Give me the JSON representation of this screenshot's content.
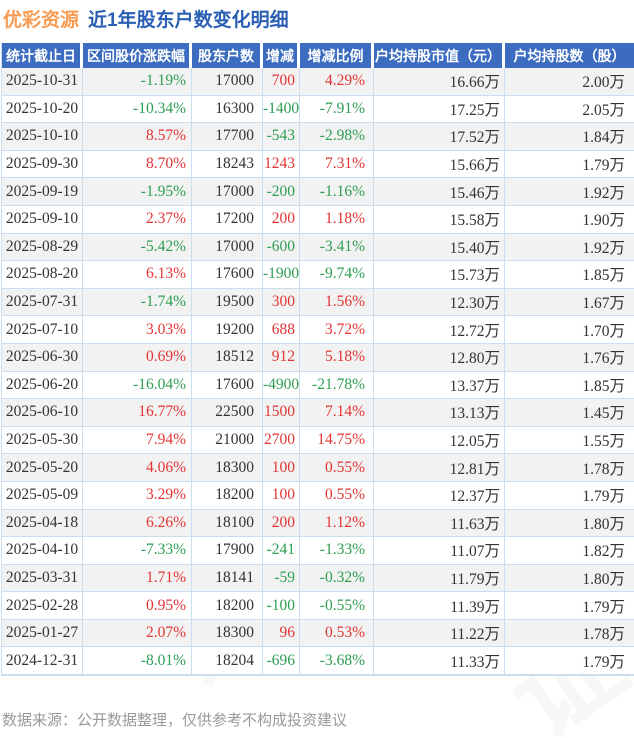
{
  "title": {
    "stock": "优彩资源",
    "suffix": "近1年股东户数变化明细"
  },
  "watermark": {
    "text": "证券之星"
  },
  "footer": {
    "note": "数据来源：公开数据整理，仅供参考不构成投资建议"
  },
  "colors": {
    "header_bg": "#3C6CBF",
    "title_orange": "#F99B51",
    "title_blue": "#2A5FB4",
    "red": "#E23434",
    "green": "#2D9E52",
    "row_alt": "#F2F2F2",
    "border": "#CBDEEF",
    "text": "#333333",
    "footer": "#999999"
  },
  "chart_data": {
    "type": "table",
    "title": "优彩资源 近1年股东户数变化明细",
    "columns": [
      "统计截止日",
      "区间股价涨跌幅",
      "股东户数",
      "增减",
      "增减比例",
      "户均持股市值（元）",
      "户均持股数（股）"
    ],
    "rows": [
      [
        "2025-10-31",
        "-1.19%",
        "17000",
        "700",
        "4.29%",
        "16.66万",
        "2.00万"
      ],
      [
        "2025-10-20",
        "-10.34%",
        "16300",
        "-1400",
        "-7.91%",
        "17.25万",
        "2.05万"
      ],
      [
        "2025-10-10",
        "8.57%",
        "17700",
        "-543",
        "-2.98%",
        "17.52万",
        "1.84万"
      ],
      [
        "2025-09-30",
        "8.70%",
        "18243",
        "1243",
        "7.31%",
        "15.66万",
        "1.79万"
      ],
      [
        "2025-09-19",
        "-1.95%",
        "17000",
        "-200",
        "-1.16%",
        "15.46万",
        "1.92万"
      ],
      [
        "2025-09-10",
        "2.37%",
        "17200",
        "200",
        "1.18%",
        "15.58万",
        "1.90万"
      ],
      [
        "2025-08-29",
        "-5.42%",
        "17000",
        "-600",
        "-3.41%",
        "15.40万",
        "1.92万"
      ],
      [
        "2025-08-20",
        "6.13%",
        "17600",
        "-1900",
        "-9.74%",
        "15.73万",
        "1.85万"
      ],
      [
        "2025-07-31",
        "-1.74%",
        "19500",
        "300",
        "1.56%",
        "12.30万",
        "1.67万"
      ],
      [
        "2025-07-10",
        "3.03%",
        "19200",
        "688",
        "3.72%",
        "12.72万",
        "1.70万"
      ],
      [
        "2025-06-30",
        "0.69%",
        "18512",
        "912",
        "5.18%",
        "12.80万",
        "1.76万"
      ],
      [
        "2025-06-20",
        "-16.04%",
        "17600",
        "-4900",
        "-21.78%",
        "13.37万",
        "1.85万"
      ],
      [
        "2025-06-10",
        "16.77%",
        "22500",
        "1500",
        "7.14%",
        "13.13万",
        "1.45万"
      ],
      [
        "2025-05-30",
        "7.94%",
        "21000",
        "2700",
        "14.75%",
        "12.05万",
        "1.55万"
      ],
      [
        "2025-05-20",
        "4.06%",
        "18300",
        "100",
        "0.55%",
        "12.81万",
        "1.78万"
      ],
      [
        "2025-05-09",
        "3.29%",
        "18200",
        "100",
        "0.55%",
        "12.37万",
        "1.79万"
      ],
      [
        "2025-04-18",
        "6.26%",
        "18100",
        "200",
        "1.12%",
        "11.63万",
        "1.80万"
      ],
      [
        "2025-04-10",
        "-7.33%",
        "17900",
        "-241",
        "-1.33%",
        "11.07万",
        "1.82万"
      ],
      [
        "2025-03-31",
        "1.71%",
        "18141",
        "-59",
        "-0.32%",
        "11.79万",
        "1.80万"
      ],
      [
        "2025-02-28",
        "0.95%",
        "18200",
        "-100",
        "-0.55%",
        "11.39万",
        "1.79万"
      ],
      [
        "2025-01-27",
        "2.07%",
        "18300",
        "96",
        "0.53%",
        "11.22万",
        "1.78万"
      ],
      [
        "2024-12-31",
        "-8.01%",
        "18204",
        "-696",
        "-3.68%",
        "11.33万",
        "1.79万"
      ]
    ]
  }
}
